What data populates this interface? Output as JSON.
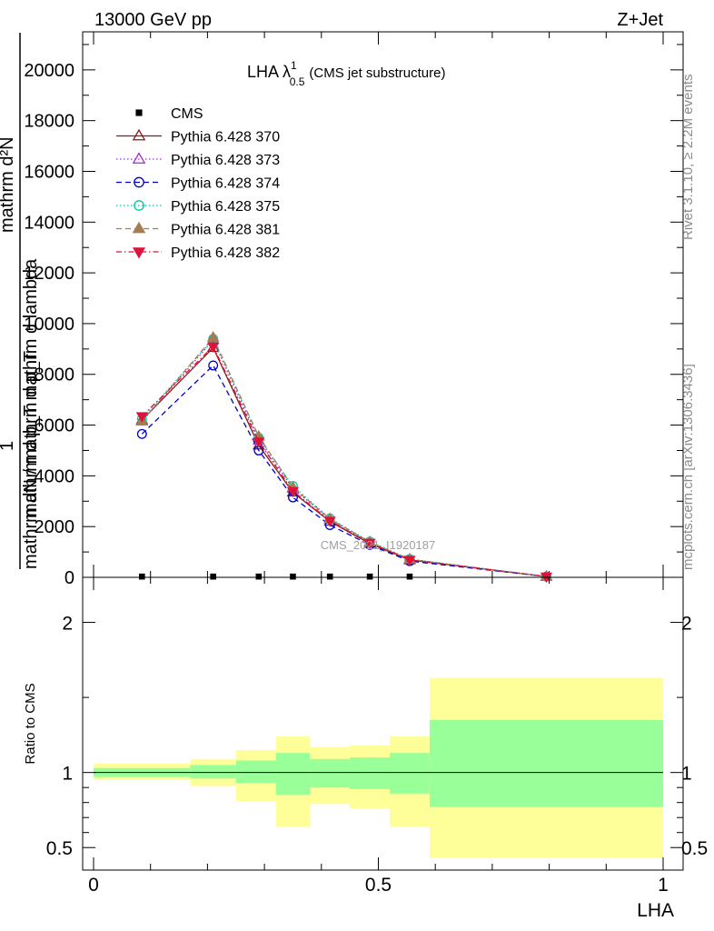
{
  "header": {
    "left": "13000 GeV pp",
    "right": "Z+Jet"
  },
  "side_labels": {
    "rivet": "Rivet 3.1.10, ≥ 2.2M events",
    "mcplots": "mcplots.cern.ch [arXiv:1306.3436]"
  },
  "watermark": "CMS_2021_I1920187",
  "chart_data": [
    {
      "type": "line",
      "title": "LHA λ",
      "title_sup": "1",
      "title_sub": "0.5",
      "title_note": "(CMS jet substructure)",
      "ylabel_numerator": "mathrm d²N",
      "ylabel_numerator_extra": "mathrm d p_T mathrm d lambda",
      "ylabel_lead": "1",
      "ylabel_denominator": "mathrm dN / mathrm d p_T",
      "xlim": [
        0,
        1
      ],
      "ylim": [
        0,
        21500
      ],
      "yticks": [
        0,
        2000,
        4000,
        6000,
        8000,
        10000,
        12000,
        14000,
        16000,
        18000,
        20000
      ],
      "ytick_labels": [
        "0",
        "2000",
        "4000",
        "6000",
        "8000",
        "10000",
        "12000",
        "14000",
        "16000",
        "18000",
        "20000"
      ],
      "legend_position": "top-left",
      "x": [
        0.085,
        0.21,
        0.29,
        0.35,
        0.415,
        0.485,
        0.555,
        0.795
      ],
      "series": [
        {
          "name": "CMS",
          "color": "#000000",
          "marker": "square",
          "dash": "",
          "values": [
            30,
            30,
            30,
            30,
            30,
            30,
            30,
            30
          ]
        },
        {
          "name": "Pythia 6.428 370",
          "color": "#8b1a1a",
          "marker": "triangle-open",
          "dash": "",
          "values": [
            6200,
            9050,
            5200,
            3350,
            2200,
            1330,
            680,
            30
          ]
        },
        {
          "name": "Pythia 6.428 373",
          "color": "#9a32cd",
          "marker": "triangle-open",
          "dash": "1.5,2.5",
          "values": [
            6150,
            9350,
            5400,
            3500,
            2280,
            1380,
            700,
            30
          ]
        },
        {
          "name": "Pythia 6.428 374",
          "color": "#0000cd",
          "marker": "circle-open",
          "dash": "6,4",
          "values": [
            5650,
            8350,
            5000,
            3150,
            2060,
            1280,
            640,
            30
          ]
        },
        {
          "name": "Pythia 6.428 375",
          "color": "#00c9a7",
          "marker": "circle-open",
          "dash": "1.5,2.5",
          "values": [
            6250,
            9400,
            5500,
            3600,
            2320,
            1410,
            720,
            30
          ]
        },
        {
          "name": "Pythia 6.428 381",
          "color": "#a67c52",
          "marker": "triangle-filled",
          "dash": "6,4",
          "values": [
            6150,
            9450,
            5550,
            3550,
            2300,
            1390,
            710,
            30
          ]
        },
        {
          "name": "Pythia 6.428 382",
          "color": "#dc143c",
          "marker": "triangle-down-filled",
          "dash": "6,3,1.5,3",
          "values": [
            6350,
            9100,
            5350,
            3400,
            2230,
            1360,
            690,
            30
          ]
        }
      ]
    },
    {
      "type": "area",
      "ylabel": "Ratio to CMS",
      "xlabel": "LHA",
      "xlim": [
        0,
        1
      ],
      "ylim": [
        0.35,
        2.3
      ],
      "yticks": [
        0.5,
        1,
        2
      ],
      "ytick_labels": [
        "0.5",
        "1",
        "2"
      ],
      "xticks": [
        0,
        0.5,
        1
      ],
      "xtick_labels": [
        "0",
        "0.5",
        "1"
      ],
      "bins": [
        {
          "x0": 0.0,
          "x1": 0.17,
          "stat": [
            0.97,
            1.03
          ],
          "total": [
            0.95,
            1.06
          ]
        },
        {
          "x0": 0.17,
          "x1": 0.25,
          "stat": [
            0.96,
            1.05
          ],
          "total": [
            0.91,
            1.09
          ]
        },
        {
          "x0": 0.25,
          "x1": 0.32,
          "stat": [
            0.93,
            1.08
          ],
          "total": [
            0.81,
            1.15
          ]
        },
        {
          "x0": 0.32,
          "x1": 0.38,
          "stat": [
            0.85,
            1.13
          ],
          "total": [
            0.64,
            1.24
          ]
        },
        {
          "x0": 0.38,
          "x1": 0.45,
          "stat": [
            0.9,
            1.09
          ],
          "total": [
            0.79,
            1.17
          ]
        },
        {
          "x0": 0.45,
          "x1": 0.52,
          "stat": [
            0.89,
            1.1
          ],
          "total": [
            0.76,
            1.18
          ]
        },
        {
          "x0": 0.52,
          "x1": 0.59,
          "stat": [
            0.86,
            1.13
          ],
          "total": [
            0.64,
            1.24
          ]
        },
        {
          "x0": 0.59,
          "x1": 1.0,
          "stat": [
            0.77,
            1.35
          ],
          "total": [
            0.43,
            1.63
          ]
        }
      ],
      "stat_color": "#99ff99",
      "total_color": "#ffff99",
      "reference": 1
    }
  ]
}
